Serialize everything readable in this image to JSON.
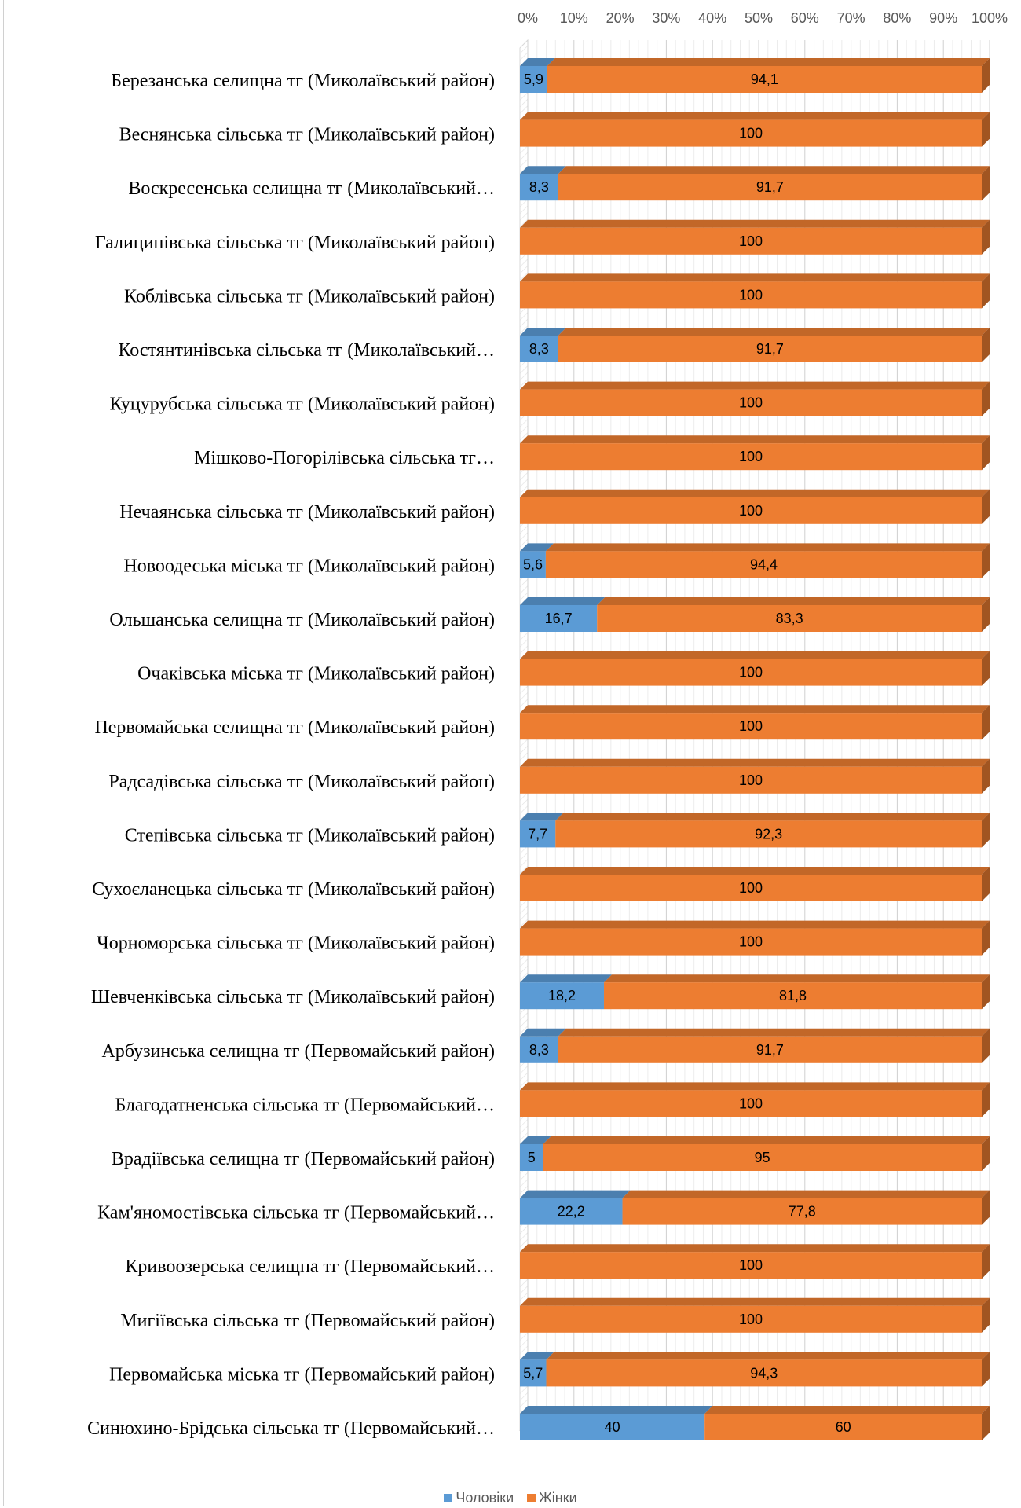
{
  "chart_data": {
    "type": "bar",
    "orientation": "horizontal",
    "stacked": "percent",
    "style": "3d",
    "xlim": [
      0,
      100
    ],
    "x_ticks": [
      "0%",
      "10%",
      "20%",
      "30%",
      "40%",
      "50%",
      "60%",
      "70%",
      "80%",
      "90%",
      "100%"
    ],
    "grid": true,
    "legend_position": "bottom",
    "categories": [
      "Березанська селищна тг (Миколаївський район)",
      "Веснянська сільська тг (Миколаївський район)",
      "Воскресенська  селищна тг (Миколаївський…",
      "Галицинівська сільська тг (Миколаївський район)",
      "Коблівська сільська тг (Миколаївський район)",
      "Костянтинівська сільська тг (Миколаївський…",
      "Куцурубська сільська тг (Миколаївський район)",
      "Мішково-Погорілівська сільська тг…",
      "Нечаянська сільська тг (Миколаївський район)",
      "Новоодеська міська тг (Миколаївський район)",
      "Ольшанська селищна тг (Миколаївський район)",
      "Очаківська міська тг (Миколаївський район)",
      "Первомайська селищна тг (Миколаївський район)",
      "Радсадівська сільська тг (Миколаївський район)",
      "Степівська сільська тг (Миколаївський район)",
      "Сухоєланецька сільська тг (Миколаївський район)",
      "Чорноморська сільська тг (Миколаївський район)",
      "Шевченківська сільська тг (Миколаївський район)",
      "Арбузинська селищна тг (Первомайський район)",
      "Благодатненська сільська тг (Первомайський…",
      "Врадіївська селищна тг (Первомайський район)",
      "Кам'яномостівська сільська тг (Первомайський…",
      "Кривоозерська селищна тг (Первомайський…",
      "Мигіївська сільська тг (Первомайський район)",
      "Первомайська міська тг (Первомайський район)",
      "Синюхино-Брідська сільська тг (Первомайський…"
    ],
    "series": [
      {
        "name": "Чоловіки",
        "color": "#5B9BD5",
        "values": [
          5.9,
          0,
          8.3,
          0,
          0,
          8.3,
          0,
          0,
          0,
          5.6,
          16.7,
          0,
          0,
          0,
          7.7,
          0,
          0,
          18.2,
          8.3,
          0,
          5,
          22.2,
          0,
          0,
          5.7,
          40
        ],
        "labels": [
          "5,9",
          "",
          "8,3",
          "",
          "",
          "8,3",
          "",
          "",
          "",
          "5,6",
          "16,7",
          "",
          "",
          "",
          "7,7",
          "",
          "",
          "18,2",
          "8,3",
          "",
          "5",
          "22,2",
          "",
          "",
          "5,7",
          "40"
        ]
      },
      {
        "name": "Жінки",
        "color": "#ED7D31",
        "values": [
          94.1,
          100,
          91.7,
          100,
          100,
          91.7,
          100,
          100,
          100,
          94.4,
          83.3,
          100,
          100,
          100,
          92.3,
          100,
          100,
          81.8,
          91.7,
          100,
          95,
          77.8,
          100,
          100,
          94.3,
          60
        ],
        "labels": [
          "94,1",
          "100",
          "91,7",
          "100",
          "100",
          "91,7",
          "100",
          "100",
          "100",
          "94,4",
          "83,3",
          "100",
          "100",
          "100",
          "92,3",
          "100",
          "100",
          "81,8",
          "91,7",
          "100",
          "95",
          "77,8",
          "100",
          "100",
          "94,3",
          "60"
        ]
      }
    ]
  }
}
